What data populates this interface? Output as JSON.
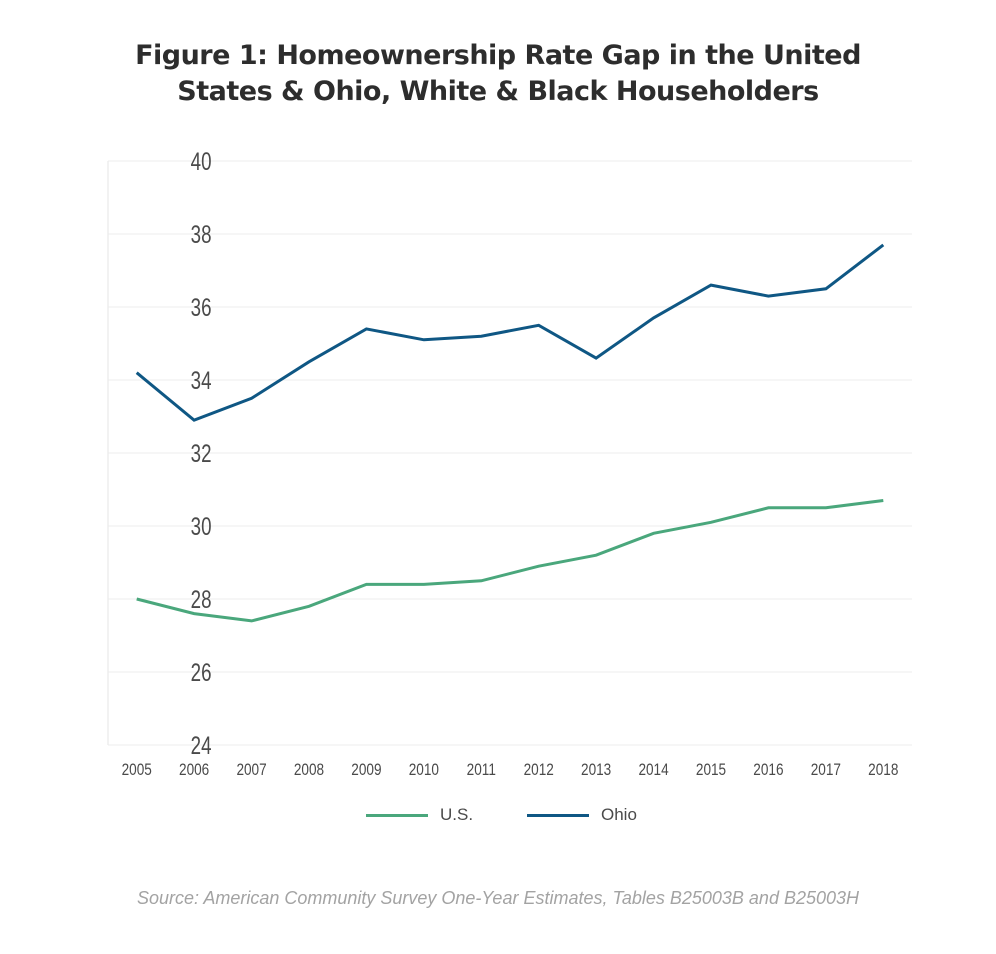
{
  "chart_data": {
    "type": "line",
    "title": "Figure 1: Homeownership Rate Gap in the United States & Ohio, White & Black Householders",
    "title_lines": [
      "Figure 1: Homeownership Rate Gap in the United",
      "States & Ohio, White & Black Householders"
    ],
    "xlabel": "",
    "ylabel": "",
    "x": [
      "2005",
      "2006",
      "2007",
      "2008",
      "2009",
      "2010",
      "2011",
      "2012",
      "2013",
      "2014",
      "2015",
      "2016",
      "2017",
      "2018"
    ],
    "ylim": [
      24,
      40
    ],
    "yticks": [
      24,
      26,
      28,
      30,
      32,
      34,
      36,
      38,
      40
    ],
    "grid": true,
    "legend_position": "bottom-center",
    "series": [
      {
        "name": "U.S.",
        "color": "#4aa77c",
        "values": [
          28.0,
          27.6,
          27.4,
          27.8,
          28.4,
          28.4,
          28.5,
          28.9,
          29.2,
          29.8,
          30.1,
          30.5,
          30.5,
          30.7
        ]
      },
      {
        "name": "Ohio",
        "color": "#0f5784",
        "values": [
          34.2,
          32.9,
          33.5,
          34.5,
          35.4,
          35.1,
          35.2,
          35.5,
          34.6,
          35.7,
          36.6,
          36.3,
          36.5,
          37.7
        ]
      }
    ],
    "source": "Source: American Community Survey One-Year Estimates, Tables B25003B and B25003H"
  }
}
